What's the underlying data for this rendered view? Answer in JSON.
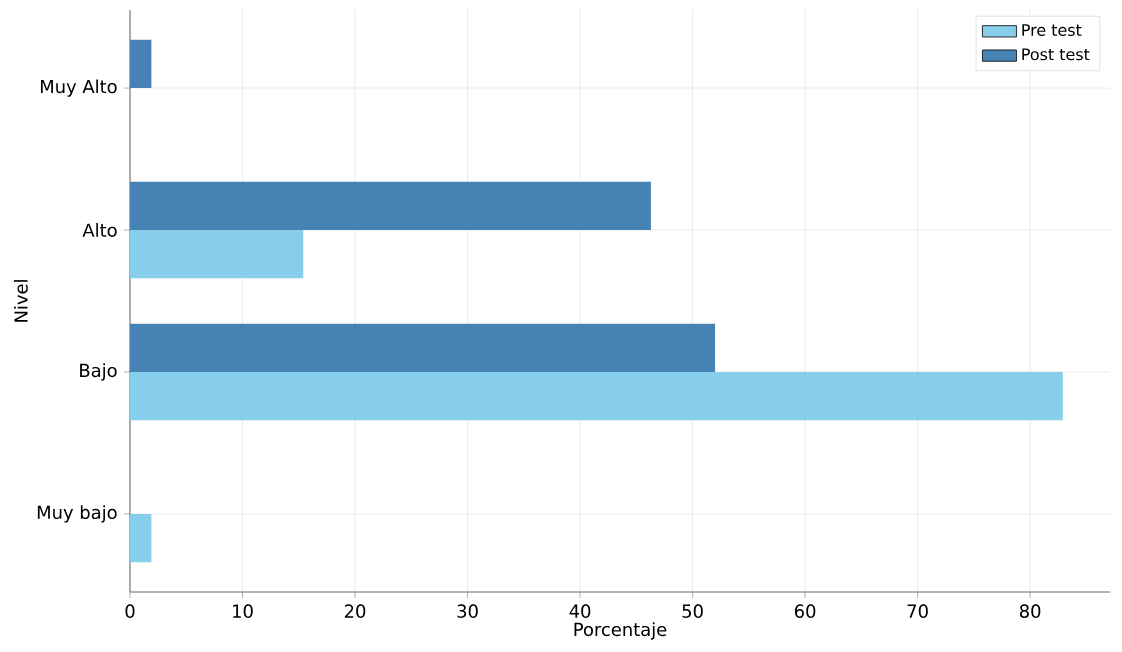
{
  "chart_data": {
    "type": "bar",
    "orientation": "horizontal",
    "xlabel": "Porcentaje",
    "ylabel": "Nivel",
    "categories": [
      "Muy Alto",
      "Alto",
      "Bajo",
      "Muy bajo"
    ],
    "series": [
      {
        "name": "Pre test",
        "color": "#87ceeb",
        "values": [
          0,
          15.4,
          82.9,
          1.9
        ]
      },
      {
        "name": "Post test",
        "color": "#4682b4",
        "values": [
          1.9,
          46.3,
          52.0,
          0
        ]
      }
    ],
    "xlim": [
      0,
      87.1
    ],
    "xticks": [
      0,
      10,
      20,
      30,
      40,
      50,
      60,
      70,
      80
    ],
    "grid": true,
    "legend": "top right"
  }
}
